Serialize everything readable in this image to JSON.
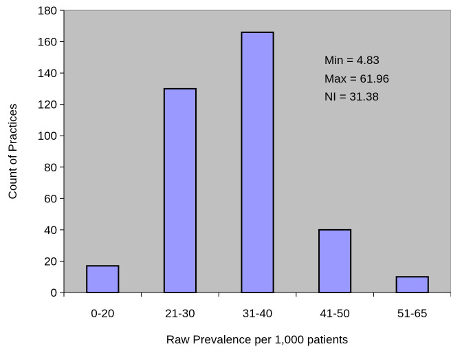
{
  "chart_data": {
    "type": "bar",
    "categories": [
      "0-20",
      "21-30",
      "31-40",
      "41-50",
      "51-65"
    ],
    "values": [
      17,
      130,
      166,
      40,
      10
    ],
    "xlabel": "Raw Prevalence per 1,000 patients",
    "ylabel": "Count of Practices",
    "ylim": [
      0,
      180
    ],
    "yticks": [
      0,
      20,
      40,
      60,
      80,
      100,
      120,
      140,
      160,
      180
    ],
    "grid": false,
    "annotations": [
      "Min = 4.83",
      "Max = 61.96",
      "NI = 31.38"
    ],
    "colors": {
      "plot_background": "#c0c0c0",
      "bar_fill": "#9999ff",
      "bar_stroke": "#000000"
    }
  }
}
